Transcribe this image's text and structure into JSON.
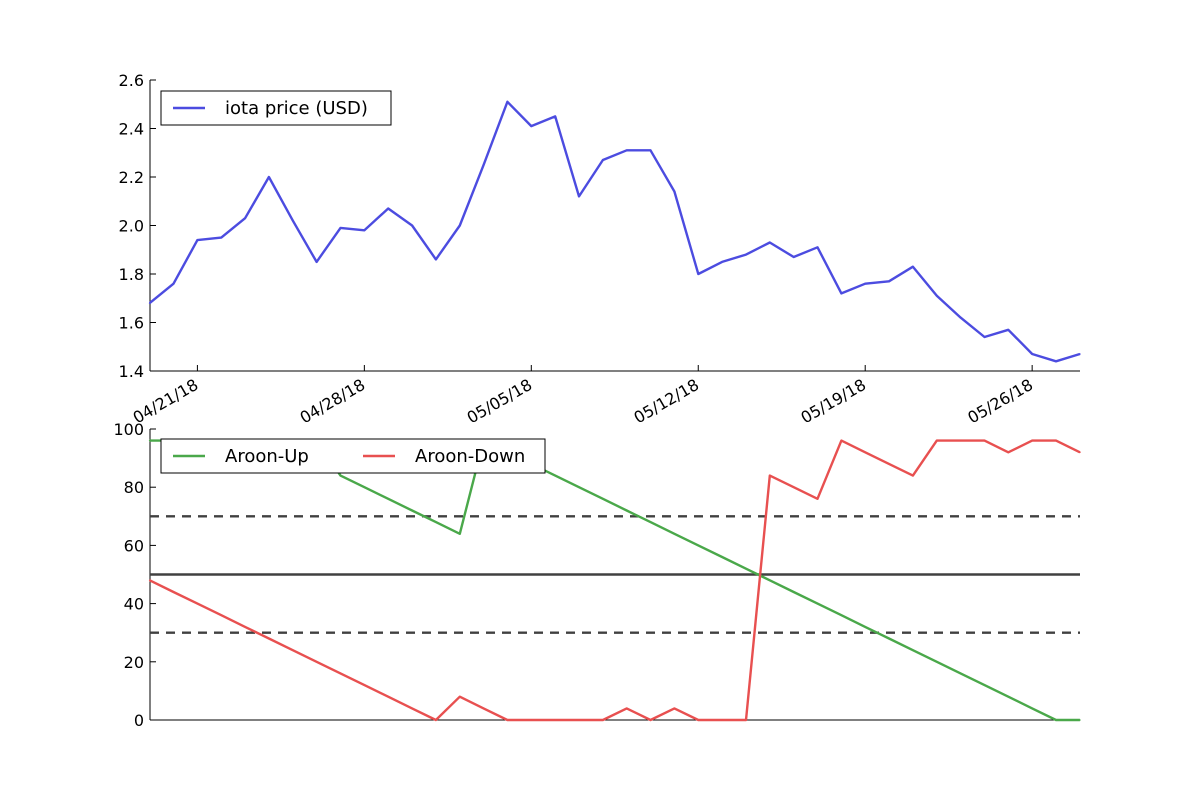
{
  "chart_data": [
    {
      "type": "line",
      "x": [
        "04/19/18",
        "04/20/18",
        "04/21/18",
        "04/22/18",
        "04/23/18",
        "04/24/18",
        "04/25/18",
        "04/26/18",
        "04/27/18",
        "04/28/18",
        "04/29/18",
        "04/30/18",
        "05/01/18",
        "05/02/18",
        "05/03/18",
        "05/04/18",
        "05/05/18",
        "05/06/18",
        "05/07/18",
        "05/08/18",
        "05/09/18",
        "05/10/18",
        "05/11/18",
        "05/12/18",
        "05/13/18",
        "05/14/18",
        "05/15/18",
        "05/16/18",
        "05/17/18",
        "05/18/18",
        "05/19/18",
        "05/20/18",
        "05/21/18",
        "05/22/18",
        "05/23/18",
        "05/24/18",
        "05/25/18",
        "05/26/18",
        "05/27/18",
        "05/28/18"
      ],
      "series": [
        {
          "name": "iota price (USD)",
          "color": "#4c4ce0",
          "values": [
            1.68,
            1.76,
            1.94,
            1.95,
            2.03,
            2.2,
            2.02,
            1.85,
            1.99,
            1.98,
            2.07,
            2.0,
            1.86,
            2.0,
            2.25,
            2.51,
            2.41,
            2.45,
            2.12,
            2.27,
            2.31,
            2.31,
            2.14,
            1.8,
            1.85,
            1.88,
            1.93,
            1.87,
            1.91,
            1.72,
            1.76,
            1.77,
            1.83,
            1.71,
            1.62,
            1.54,
            1.57,
            1.47,
            1.44,
            1.47
          ]
        }
      ],
      "ylim": [
        1.4,
        2.6
      ],
      "yticks": [
        "1.4",
        "1.6",
        "1.8",
        "2.0",
        "2.2",
        "2.4",
        "2.6"
      ],
      "xtick_labels": [
        "04/21/18",
        "04/28/18",
        "05/05/18",
        "05/12/18",
        "05/19/18",
        "05/26/18"
      ],
      "legend_position": "top-left",
      "grid": false
    },
    {
      "type": "line",
      "x": [
        "04/19/18",
        "04/20/18",
        "04/21/18",
        "04/22/18",
        "04/23/18",
        "04/24/18",
        "04/25/18",
        "04/26/18",
        "04/27/18",
        "04/28/18",
        "04/29/18",
        "04/30/18",
        "05/01/18",
        "05/02/18",
        "05/03/18",
        "05/04/18",
        "05/05/18",
        "05/06/18",
        "05/07/18",
        "05/08/18",
        "05/09/18",
        "05/10/18",
        "05/11/18",
        "05/12/18",
        "05/13/18",
        "05/14/18",
        "05/15/18",
        "05/16/18",
        "05/17/18",
        "05/18/18",
        "05/19/18",
        "05/20/18",
        "05/21/18",
        "05/22/18",
        "05/23/18",
        "05/24/18",
        "05/25/18",
        "05/26/18",
        "05/27/18",
        "05/28/18"
      ],
      "series": [
        {
          "name": "Aroon-Up",
          "color": "#4aa84a",
          "values": [
            96,
            96,
            96,
            96,
            96,
            96,
            96,
            96,
            84,
            80,
            76,
            72,
            68,
            64,
            96,
            92,
            88,
            84,
            80,
            76,
            72,
            68,
            64,
            60,
            56,
            52,
            48,
            44,
            40,
            36,
            32,
            28,
            24,
            20,
            16,
            12,
            8,
            4,
            0,
            0
          ]
        },
        {
          "name": "Aroon-Down",
          "color": "#e85050",
          "values": [
            48,
            44,
            40,
            36,
            32,
            28,
            24,
            20,
            16,
            12,
            8,
            4,
            0,
            8,
            4,
            0,
            0,
            0,
            0,
            0,
            4,
            0,
            4,
            0,
            0,
            0,
            84,
            80,
            76,
            96,
            92,
            88,
            84,
            96,
            96,
            96,
            92,
            96,
            96,
            92
          ]
        }
      ],
      "reference_lines": [
        {
          "y": 70,
          "style": "dashed",
          "color": "#404040"
        },
        {
          "y": 50,
          "style": "solid",
          "color": "#404040"
        },
        {
          "y": 30,
          "style": "dashed",
          "color": "#404040"
        }
      ],
      "ylim": [
        0,
        100
      ],
      "yticks": [
        "0",
        "20",
        "40",
        "60",
        "80",
        "100"
      ],
      "legend_position": "top-left",
      "grid": false
    }
  ]
}
